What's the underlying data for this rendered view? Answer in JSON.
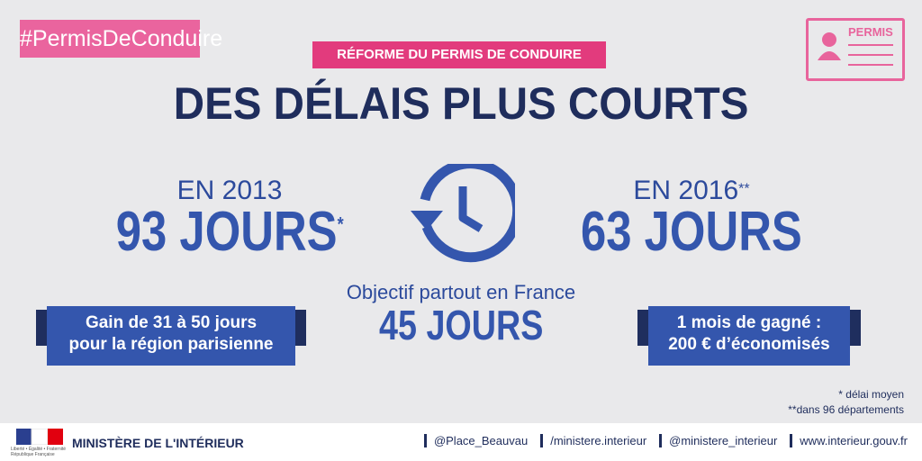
{
  "hashtag": "#PermisDeConduire",
  "card": {
    "label": "PERMIS"
  },
  "banner": "RÉFORME DU PERMIS DE CONDUIRE",
  "title": "DES DÉLAIS PLUS COURTS",
  "left": {
    "year": "EN 2013",
    "days": "93 JOURS",
    "mark": "*",
    "badge": [
      "Gain de 31 à 50 jours",
      "pour la région parisienne"
    ]
  },
  "right": {
    "year": "EN 2016",
    "mark": "**",
    "days": "63 JOURS",
    "badge": [
      "1 mois de gagné :",
      "200 € d’économisés"
    ]
  },
  "center": {
    "caption": "Objectif partout en France",
    "days": "45 JOURS"
  },
  "footnotes": [
    "* délai moyen",
    "**dans 96 départements"
  ],
  "footer": {
    "logo": [
      "Liberté • Égalité • Fraternité",
      "République Française"
    ],
    "ministry": "MINISTÈRE DE L'INTÉRIEUR",
    "links": [
      "@Place_Beauvau",
      "/ministere.interieur",
      "@ministere_interieur",
      "www.interieur.gouv.fr"
    ]
  }
}
